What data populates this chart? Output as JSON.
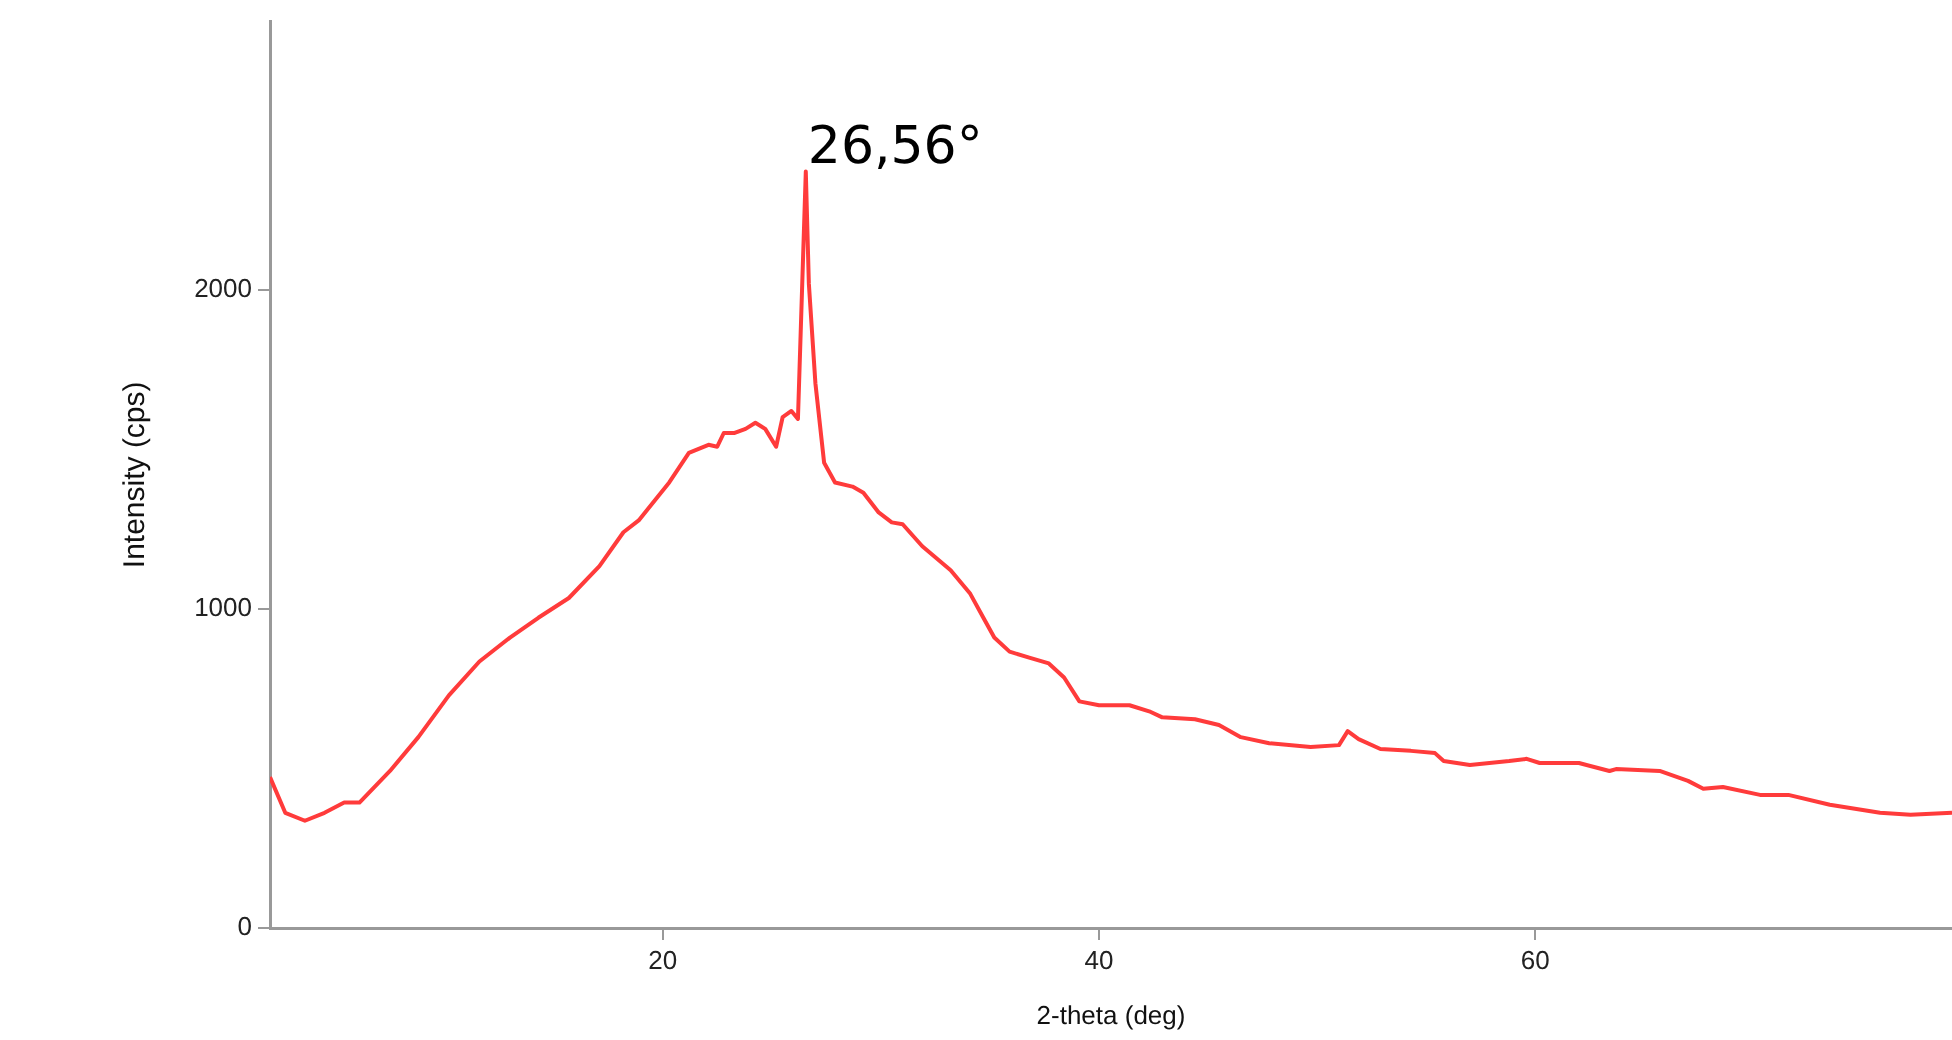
{
  "chart_data": {
    "type": "line",
    "xlabel": "2-theta (deg)",
    "ylabel": "Intensity (cps)",
    "x": [
      2,
      2.7,
      3.6,
      4.5,
      5.4,
      6.1,
      7.5,
      8.8,
      10.2,
      11.6,
      13.0,
      14.3,
      15.7,
      17.1,
      18.2,
      18.9,
      20.3,
      21.2,
      22.1,
      22.5,
      22.8,
      23.3,
      23.8,
      24.25,
      24.7,
      25.2,
      25.5,
      25.9,
      26.2,
      26.56,
      26.7,
      27.0,
      27.4,
      27.9,
      28.7,
      29.2,
      29.9,
      30.5,
      31.0,
      31.9,
      33.2,
      34.1,
      34.7,
      35.2,
      35.9,
      36.8,
      37.7,
      38.4,
      39.1,
      40.0,
      41.4,
      42.3,
      42.9,
      44.4,
      45.5,
      46.5,
      47.8,
      49.7,
      51.0,
      51.4,
      51.9,
      52.9,
      54.3,
      55.4,
      55.8,
      57.0,
      58.8,
      59.6,
      60.2,
      62.0,
      63.4,
      63.7,
      65.7,
      67.0,
      67.7,
      68.6,
      70.3,
      71.6,
      73.5,
      75.8,
      77.2,
      79.1
    ],
    "series": [
      {
        "color": "#ff3b3b",
        "values": [
          473,
          361,
          336,
          361,
          393,
          393,
          492,
          598,
          729,
          835,
          910,
          972,
          1034,
          1134,
          1240,
          1277,
          1396,
          1489,
          1514,
          1508,
          1551,
          1551,
          1564,
          1583,
          1564,
          1508,
          1601,
          1620,
          1595,
          2370,
          2019,
          1707,
          1458,
          1396,
          1383,
          1364,
          1302,
          1271,
          1265,
          1196,
          1121,
          1047,
          972,
          910,
          866,
          847,
          829,
          785,
          710,
          698,
          698,
          679,
          660,
          654,
          636,
          598,
          579,
          567,
          573,
          617,
          592,
          561,
          555,
          548,
          523,
          511,
          523,
          530,
          517,
          517,
          492,
          498,
          492,
          461,
          436,
          442,
          417,
          417,
          386,
          361,
          355,
          361
        ]
      }
    ],
    "xlim": [
      2,
      79.1
    ],
    "xticks": [
      20,
      40,
      60
    ],
    "ylim": [
      0,
      2840
    ],
    "yticks": [
      0,
      1000,
      2000
    ],
    "annotations": [
      {
        "text": "26,56°",
        "x": 26.56,
        "y": 2370
      }
    ],
    "grid": false,
    "legend": false,
    "marker": "none",
    "line_style": "solid"
  }
}
